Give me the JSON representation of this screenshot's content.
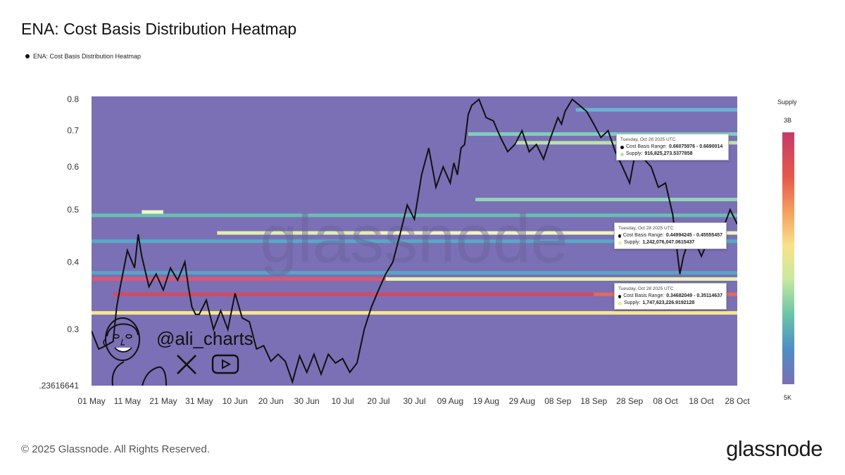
{
  "title": "ENA: Cost Basis Distribution Heatmap",
  "legend": {
    "label": "ENA: Cost Basis Distribution Heatmap"
  },
  "colorbar": {
    "title": "Supply",
    "max_label": "3B",
    "min_label": "5K",
    "colors": [
      "#c43b6b",
      "#e55a4a",
      "#f4a261",
      "#f7e28a",
      "#c9e9a0",
      "#6cc6a6",
      "#4d8ec4",
      "#7b6fb5"
    ]
  },
  "footer": {
    "copyright": "© 2025 Glassnode. All Rights Reserved.",
    "brand": "glassnode"
  },
  "watermark": {
    "text": "glassnode",
    "handle": "@ali_charts"
  },
  "tooltips": [
    {
      "date": "Tuesday, Oct 28 2025 UTC",
      "range_label": "Cost Basis Range:",
      "range": "0.66075976 - 0.6690014",
      "supply_label": "Supply:",
      "supply": "916,825,273.5377858",
      "swatch": "#b9e4a6"
    },
    {
      "date": "Tuesday, Oct 28 2025 UTC",
      "range_label": "Cost Basis Range:",
      "range": "0.44994245 - 0.45555457",
      "supply_label": "Supply:",
      "supply": "1,242,076,047.0615437",
      "swatch": "#e9f2b0"
    },
    {
      "date": "Tuesday, Oct 28 2025 UTC",
      "range_label": "Cost Basis Range:",
      "range": "0.34682049 - 0.35114637",
      "supply_label": "Supply:",
      "supply": "1,747,623,226.9192128",
      "swatch": "#f6e690"
    }
  ],
  "chart_data": {
    "type": "heatmap",
    "title": "ENA: Cost Basis Distribution Heatmap",
    "x_ticks": [
      "01 May",
      "11 May",
      "21 May",
      "31 May",
      "10 Jun",
      "20 Jun",
      "30 Jun",
      "10 Jul",
      "20 Jul",
      "30 Jul",
      "09 Aug",
      "19 Aug",
      "29 Aug",
      "08 Sep",
      "18 Sep",
      "28 Sep",
      "08 Oct",
      "18 Oct",
      "28 Oct"
    ],
    "y_scale": "log",
    "y_ticks": [
      {
        "value": 0.8,
        "label": "0.8"
      },
      {
        "value": 0.7,
        "label": "0.7"
      },
      {
        "value": 0.6,
        "label": "0.6"
      },
      {
        "value": 0.5,
        "label": "0.5"
      },
      {
        "value": 0.4,
        "label": "0.4"
      },
      {
        "value": 0.3,
        "label": "0.3"
      },
      {
        "value": 0.23616641,
        "label": ".23616641"
      }
    ],
    "ylim": [
      0.23616641,
      0.81
    ],
    "xlim_days": [
      0,
      180
    ],
    "background_color": "#7b6fb5",
    "bands": [
      {
        "y": 0.322,
        "x_start": 0,
        "x_end": 180,
        "color": "#f6e690"
      },
      {
        "y": 0.3485,
        "x_start": 6,
        "x_end": 140,
        "color": "#d9485e"
      },
      {
        "y": 0.3485,
        "x_start": 140,
        "x_end": 180,
        "color": "#e46a5a"
      },
      {
        "y": 0.372,
        "x_start": 0,
        "x_end": 82,
        "color": "#e2566a"
      },
      {
        "y": 0.372,
        "x_start": 82,
        "x_end": 180,
        "color": "#e8f3a8"
      },
      {
        "y": 0.382,
        "x_start": 0,
        "x_end": 180,
        "color": "#5aa3c7"
      },
      {
        "y": 0.437,
        "x_start": 0,
        "x_end": 180,
        "color": "#58a9c6"
      },
      {
        "y": 0.4527,
        "x_start": 35,
        "x_end": 80,
        "color": "#dff0b0"
      },
      {
        "y": 0.4527,
        "x_start": 80,
        "x_end": 180,
        "color": "#eef6c0"
      },
      {
        "y": 0.488,
        "x_start": 0,
        "x_end": 180,
        "color": "#63c1b0"
      },
      {
        "y": 0.495,
        "x_start": 14,
        "x_end": 20,
        "color": "#f2f6c2"
      },
      {
        "y": 0.522,
        "x_start": 107,
        "x_end": 180,
        "color": "#8ed6b0"
      },
      {
        "y": 0.6648,
        "x_start": 118,
        "x_end": 180,
        "color": "#b9e4a6"
      },
      {
        "y": 0.69,
        "x_start": 105,
        "x_end": 180,
        "color": "#7dcfb8"
      },
      {
        "y": 0.765,
        "x_start": 135,
        "x_end": 180,
        "color": "#66b7cf"
      }
    ],
    "series": [
      {
        "x": [
          0,
          2,
          4,
          6,
          7,
          8,
          10,
          12,
          13,
          14,
          16,
          18,
          20,
          22,
          24,
          26,
          27,
          28,
          29,
          30,
          32,
          34,
          36,
          38,
          40,
          42,
          44,
          46,
          48,
          50,
          52,
          54,
          56,
          58,
          60,
          62,
          64,
          66,
          68,
          70,
          72,
          74,
          76,
          78,
          80,
          82,
          84,
          86,
          88,
          90,
          92,
          94,
          96,
          98,
          100,
          101,
          102,
          103,
          104,
          105,
          106,
          108,
          110,
          112,
          114,
          116,
          118,
          120,
          122,
          124,
          126,
          128,
          130,
          131,
          132,
          134,
          136,
          138,
          140,
          142,
          144,
          146,
          148,
          150,
          152,
          154,
          156,
          158,
          160,
          162,
          164,
          165,
          166,
          168,
          170,
          172,
          174,
          176,
          178,
          180
        ],
        "y": [
          0.298,
          0.276,
          0.28,
          0.285,
          0.33,
          0.36,
          0.42,
          0.39,
          0.45,
          0.41,
          0.36,
          0.38,
          0.355,
          0.39,
          0.37,
          0.4,
          0.36,
          0.33,
          0.32,
          0.32,
          0.34,
          0.3,
          0.325,
          0.3,
          0.35,
          0.315,
          0.31,
          0.276,
          0.28,
          0.262,
          0.27,
          0.262,
          0.24,
          0.268,
          0.25,
          0.27,
          0.248,
          0.27,
          0.26,
          0.265,
          0.25,
          0.26,
          0.3,
          0.33,
          0.355,
          0.38,
          0.4,
          0.45,
          0.51,
          0.48,
          0.58,
          0.65,
          0.55,
          0.6,
          0.56,
          0.61,
          0.58,
          0.65,
          0.66,
          0.75,
          0.78,
          0.8,
          0.74,
          0.73,
          0.68,
          0.64,
          0.66,
          0.7,
          0.64,
          0.66,
          0.62,
          0.68,
          0.74,
          0.72,
          0.76,
          0.8,
          0.78,
          0.76,
          0.72,
          0.68,
          0.7,
          0.64,
          0.6,
          0.56,
          0.66,
          0.62,
          0.6,
          0.55,
          0.56,
          0.49,
          0.38,
          0.41,
          0.43,
          0.44,
          0.41,
          0.44,
          0.47,
          0.46,
          0.5,
          0.47
        ]
      }
    ]
  }
}
